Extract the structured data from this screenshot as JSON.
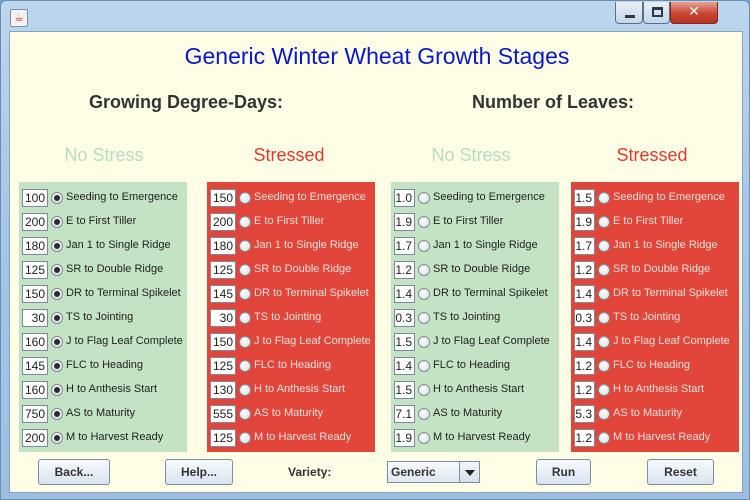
{
  "window": {
    "controls": {
      "minimize": "minimize",
      "maximize": "maximize",
      "close": "close"
    }
  },
  "title": "Generic Winter Wheat Growth Stages",
  "sections": {
    "gdd": "Growing Degree-Days:",
    "leaves": "Number of Leaves:"
  },
  "columns": {
    "no_stress": "No Stress",
    "stressed": "Stressed"
  },
  "stages": [
    "Seeding to Emergence",
    "E to First Tiller",
    "Jan 1 to Single Ridge",
    "SR to Double Ridge",
    "DR to Terminal Spikelet",
    "TS to Jointing",
    "J to Flag Leaf Complete",
    "FLC to Heading",
    "H to Anthesis Start",
    "AS to Maturity",
    "M to Harvest Ready"
  ],
  "values": {
    "gdd_no_stress": [
      "100",
      "200",
      "180",
      "125",
      "150",
      "30",
      "160",
      "145",
      "160",
      "750",
      "200"
    ],
    "gdd_stressed": [
      "150",
      "200",
      "180",
      "125",
      "145",
      "30",
      "150",
      "125",
      "130",
      "555",
      "125"
    ],
    "leaves_no_stress": [
      "1.0",
      "1.9",
      "1.7",
      "1.2",
      "1.4",
      "0.3",
      "1.5",
      "1.4",
      "1.5",
      "7.1",
      "1.9"
    ],
    "leaves_stressed": [
      "1.5",
      "1.9",
      "1.7",
      "1.2",
      "1.4",
      "0.3",
      "1.4",
      "1.2",
      "1.2",
      "5.3",
      "1.2"
    ]
  },
  "radio_selected": {
    "gdd_no_stress": true,
    "gdd_stressed": false,
    "leaves_no_stress": false,
    "leaves_stressed": false
  },
  "buttons": {
    "back": "Back...",
    "help": "Help...",
    "run": "Run",
    "reset": "Reset"
  },
  "variety": {
    "label": "Variety:",
    "selected": "Generic"
  },
  "colors": {
    "title": "#0a16c8",
    "no_stress_panel": "#c4e3c4",
    "stressed_panel": "#e2463a",
    "no_stress_heading": "#b9dcbf",
    "stressed_heading": "#df3b30",
    "background": "#fefee6"
  }
}
